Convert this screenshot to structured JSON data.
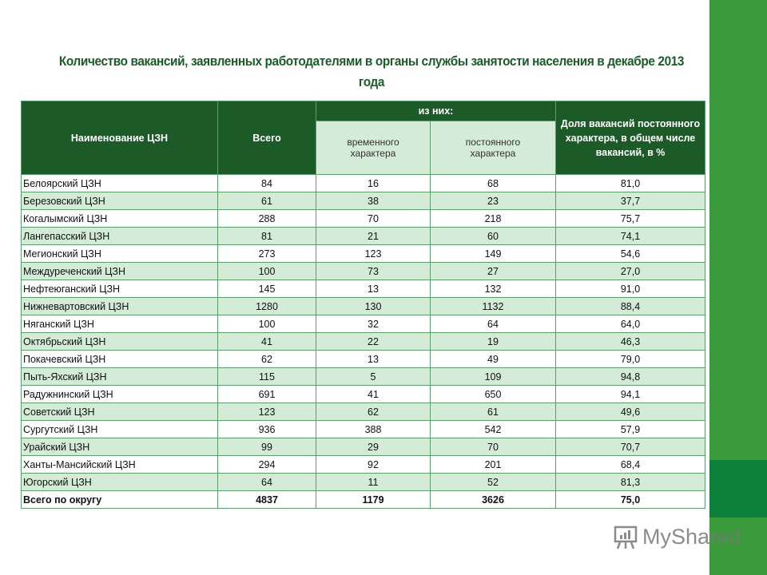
{
  "title": "Количество вакансий, заявленных работодателями в органы службы занятости населения в декабре 2013 года",
  "table": {
    "headers": {
      "name": "Наименование ЦЗН",
      "total": "Всего",
      "of_which": "из них:",
      "temporary": "временного характера",
      "permanent": "постоянного характера",
      "share": "Доля вакансий постоянного характера, в общем числе вакансий, в %"
    },
    "rows": [
      {
        "name": "Белоярский ЦЗН",
        "total": "84",
        "temporary": "16",
        "permanent": "68",
        "share": "81,0"
      },
      {
        "name": "Березовский ЦЗН",
        "total": "61",
        "temporary": "38",
        "permanent": "23",
        "share": "37,7"
      },
      {
        "name": "Когалымский ЦЗН",
        "total": "288",
        "temporary": "70",
        "permanent": "218",
        "share": "75,7"
      },
      {
        "name": "Лангепасский ЦЗН",
        "total": "81",
        "temporary": "21",
        "permanent": "60",
        "share": "74,1"
      },
      {
        "name": "Мегионский ЦЗН",
        "total": "273",
        "temporary": "123",
        "permanent": "149",
        "share": "54,6"
      },
      {
        "name": "Междуреченский ЦЗН",
        "total": "100",
        "temporary": "73",
        "permanent": "27",
        "share": "27,0"
      },
      {
        "name": "Нефтеюганский ЦЗН",
        "total": "145",
        "temporary": "13",
        "permanent": "132",
        "share": "91,0"
      },
      {
        "name": "Нижневартовский ЦЗН",
        "total": "1280",
        "temporary": "130",
        "permanent": "1132",
        "share": "88,4"
      },
      {
        "name": "Няганский ЦЗН",
        "total": "100",
        "temporary": "32",
        "permanent": "64",
        "share": "64,0"
      },
      {
        "name": "Октябрьский ЦЗН",
        "total": "41",
        "temporary": "22",
        "permanent": "19",
        "share": "46,3"
      },
      {
        "name": "Покачевский ЦЗН",
        "total": "62",
        "temporary": "13",
        "permanent": "49",
        "share": "79,0"
      },
      {
        "name": "Пыть-Яхский ЦЗН",
        "total": "115",
        "temporary": "5",
        "permanent": "109",
        "share": "94,8"
      },
      {
        "name": "Радужнинский ЦЗН",
        "total": "691",
        "temporary": "41",
        "permanent": "650",
        "share": "94,1"
      },
      {
        "name": "Советский ЦЗН",
        "total": "123",
        "temporary": "62",
        "permanent": "61",
        "share": "49,6"
      },
      {
        "name": "Сургутский ЦЗН",
        "total": "936",
        "temporary": "388",
        "permanent": "542",
        "share": "57,9"
      },
      {
        "name": "Урайский ЦЗН",
        "total": "99",
        "temporary": "29",
        "permanent": "70",
        "share": "70,7"
      },
      {
        "name": "Ханты-Мансийский ЦЗН",
        "total": "294",
        "temporary": "92",
        "permanent": "201",
        "share": "68,4"
      },
      {
        "name": "Югорский ЦЗН",
        "total": "64",
        "temporary": "11",
        "permanent": "52",
        "share": "81,3"
      }
    ],
    "total_row": {
      "name": "Всего по округу",
      "total": "4837",
      "temporary": "1179",
      "permanent": "3626",
      "share": "75,0"
    }
  },
  "watermark": {
    "text": "MyShared",
    "icon": "presentation-chart-icon"
  },
  "colors": {
    "header_dark": "#1c5a28",
    "row_light": "#d3ebd7",
    "band": "#3a9b3a",
    "band_dark": "#0b803b"
  }
}
